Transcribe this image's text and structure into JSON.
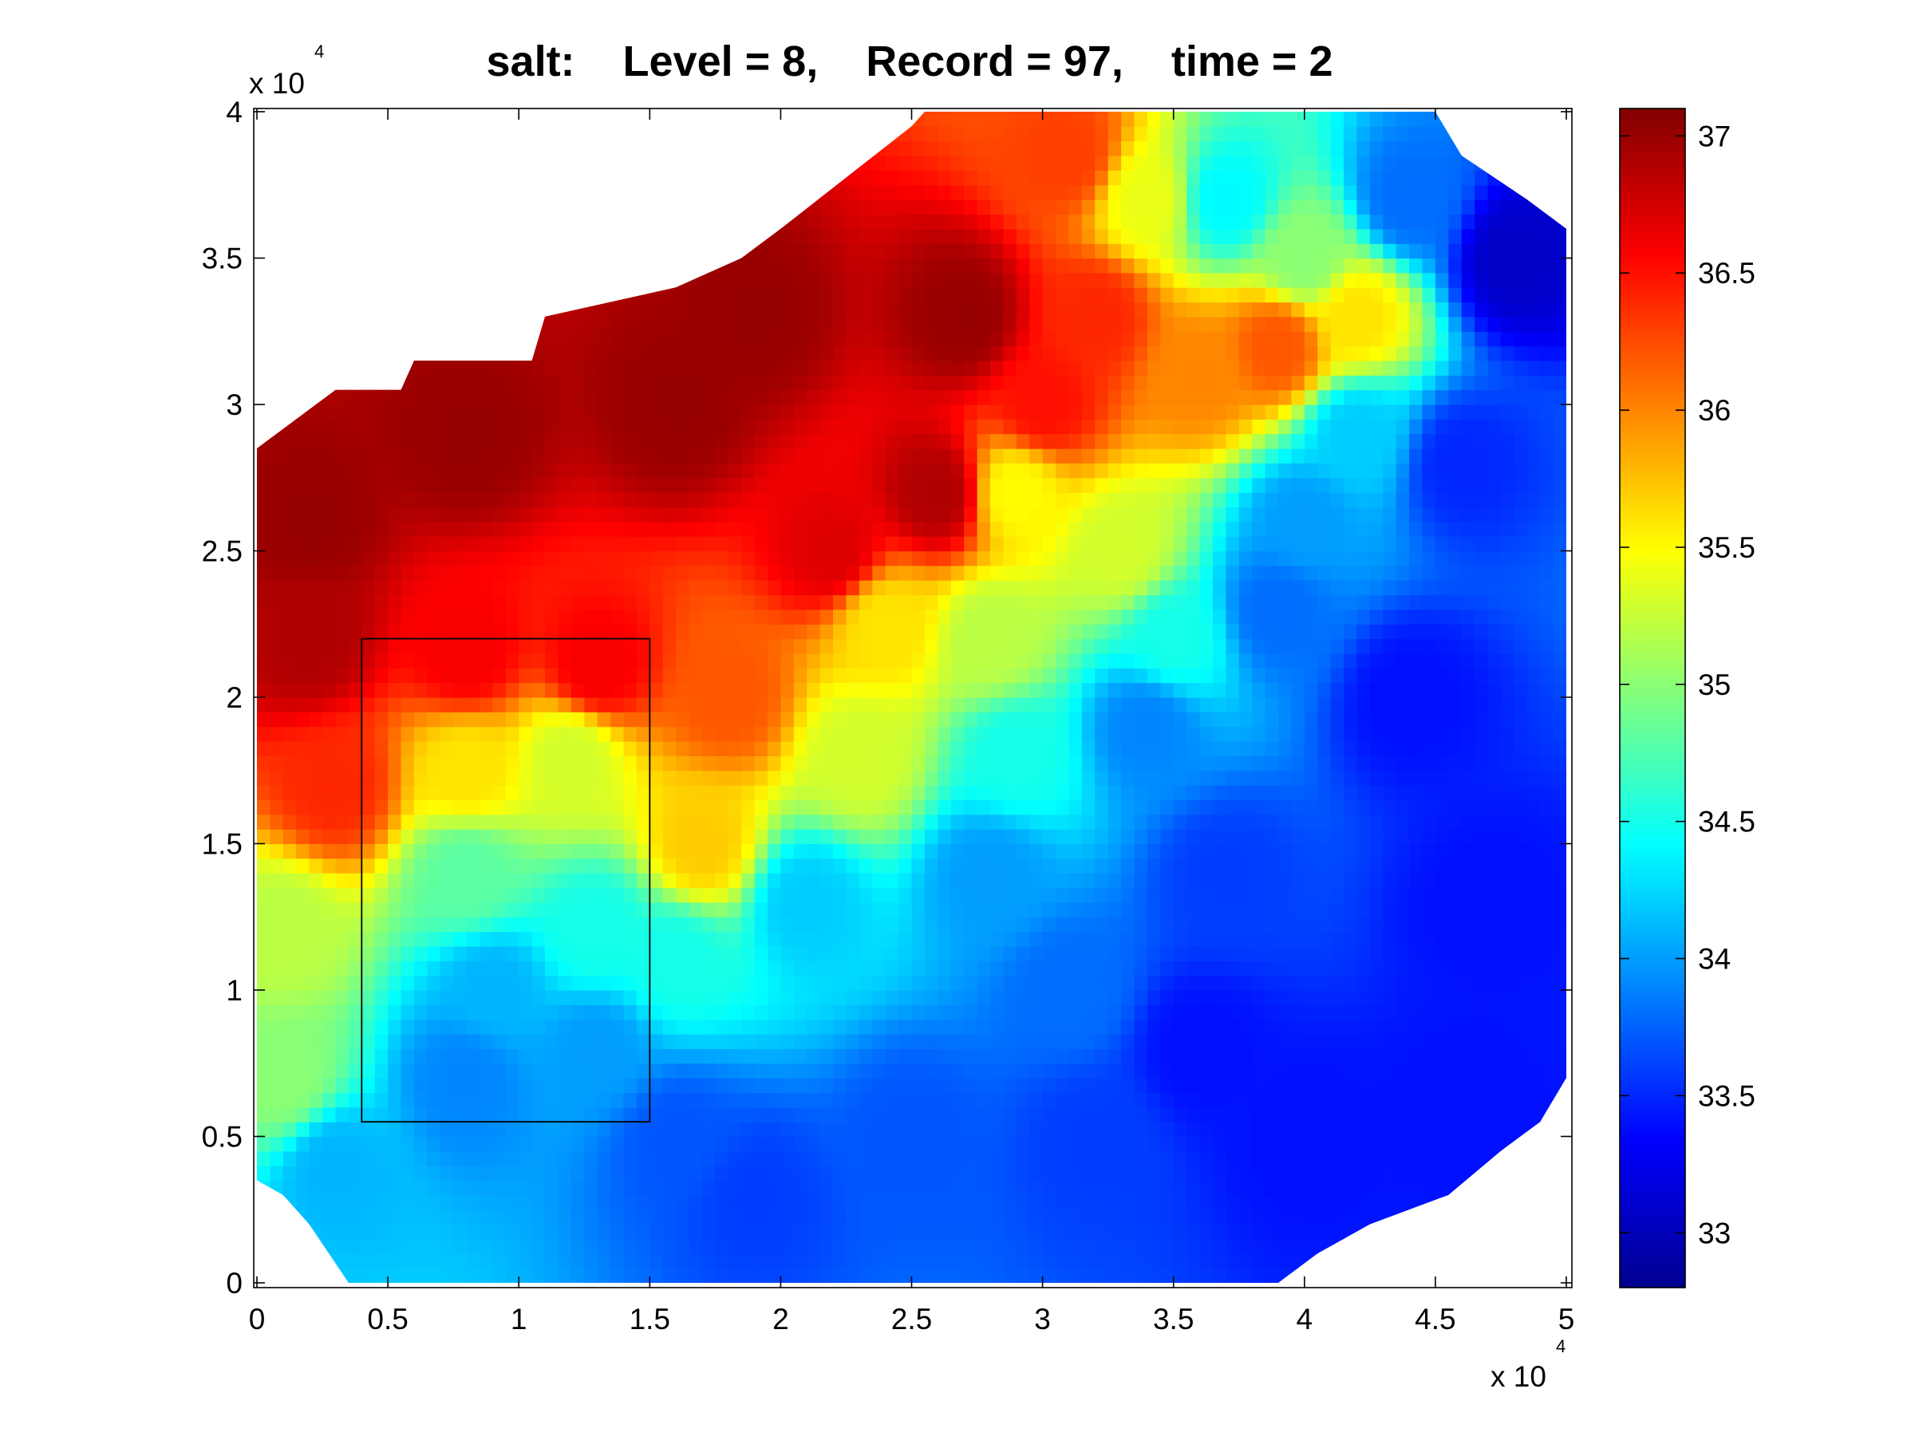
{
  "chart_data": {
    "type": "heatmap",
    "title": "salt:    Level = 8,    Record = 97,    time = 2",
    "xlabel": "",
    "ylabel": "",
    "x_multiplier": "x 10",
    "x_multiplier_exponent": "4",
    "y_multiplier": "x 10",
    "y_multiplier_exponent": "4",
    "xlim": [
      0,
      5
    ],
    "ylim": [
      0,
      4
    ],
    "x_ticks": [
      "0",
      "0.5",
      "1",
      "1.5",
      "2",
      "2.5",
      "3",
      "3.5",
      "4",
      "4.5",
      "5"
    ],
    "y_ticks": [
      "0",
      "0.5",
      "1",
      "1.5",
      "2",
      "2.5",
      "3",
      "3.5",
      "4"
    ],
    "colorbar": {
      "colormap": "jet",
      "range": [
        32.8,
        37.1
      ],
      "ticks": [
        "33",
        "33.5",
        "34",
        "34.5",
        "35",
        "35.5",
        "36",
        "36.5",
        "37"
      ]
    },
    "grid": false,
    "domain_outline": [
      [
        0,
        1.2
      ],
      [
        0,
        2.85
      ],
      [
        0.3,
        3.05
      ],
      [
        0.55,
        3.05
      ],
      [
        0.6,
        3.15
      ],
      [
        1.05,
        3.15
      ],
      [
        1.1,
        3.3
      ],
      [
        1.6,
        3.4
      ],
      [
        1.85,
        3.5
      ],
      [
        2.0,
        3.6
      ],
      [
        2.5,
        3.95
      ],
      [
        2.55,
        4.0
      ],
      [
        4.5,
        4.0
      ],
      [
        4.6,
        3.85
      ],
      [
        4.85,
        3.7
      ],
      [
        5.0,
        3.6
      ],
      [
        5.0,
        0.7
      ],
      [
        4.9,
        0.55
      ],
      [
        4.75,
        0.45
      ],
      [
        4.55,
        0.3
      ],
      [
        4.25,
        0.2
      ],
      [
        4.05,
        0.1
      ],
      [
        3.9,
        0.0
      ],
      [
        0.35,
        0.0
      ],
      [
        0.2,
        0.2
      ],
      [
        0.1,
        0.3
      ],
      [
        0,
        0.35
      ]
    ],
    "annotation_box": {
      "x": [
        0.4,
        1.5
      ],
      "y": [
        0.55,
        2.2
      ]
    },
    "salinity_field_anchors": [
      {
        "x": 0.2,
        "y": 2.6,
        "v": 37.0
      },
      {
        "x": 0.2,
        "y": 2.2,
        "v": 36.9
      },
      {
        "x": 0.3,
        "y": 1.7,
        "v": 36.4
      },
      {
        "x": 0.1,
        "y": 1.2,
        "v": 35.2
      },
      {
        "x": 0.1,
        "y": 0.7,
        "v": 35.0
      },
      {
        "x": 0.3,
        "y": 0.4,
        "v": 34.1
      },
      {
        "x": 0.8,
        "y": 2.9,
        "v": 37.0
      },
      {
        "x": 0.8,
        "y": 2.15,
        "v": 36.6
      },
      {
        "x": 0.8,
        "y": 1.75,
        "v": 35.6
      },
      {
        "x": 0.8,
        "y": 1.4,
        "v": 34.8
      },
      {
        "x": 0.9,
        "y": 1.0,
        "v": 34.1
      },
      {
        "x": 0.8,
        "y": 0.7,
        "v": 33.9
      },
      {
        "x": 1.3,
        "y": 2.1,
        "v": 36.6
      },
      {
        "x": 1.2,
        "y": 1.8,
        "v": 35.3
      },
      {
        "x": 1.3,
        "y": 1.2,
        "v": 34.5
      },
      {
        "x": 1.3,
        "y": 0.8,
        "v": 34.0
      },
      {
        "x": 1.8,
        "y": 2.0,
        "v": 36.2
      },
      {
        "x": 1.7,
        "y": 1.5,
        "v": 35.7
      },
      {
        "x": 1.6,
        "y": 1.1,
        "v": 34.5
      },
      {
        "x": 1.6,
        "y": 0.5,
        "v": 33.7
      },
      {
        "x": 1.9,
        "y": 0.3,
        "v": 33.6
      },
      {
        "x": 2.1,
        "y": 1.3,
        "v": 34.2
      },
      {
        "x": 2.5,
        "y": 0.5,
        "v": 33.7
      },
      {
        "x": 2.3,
        "y": 1.8,
        "v": 35.3
      },
      {
        "x": 2.4,
        "y": 2.25,
        "v": 35.6
      },
      {
        "x": 2.2,
        "y": 2.5,
        "v": 36.7
      },
      {
        "x": 2.6,
        "y": 2.7,
        "v": 36.9
      },
      {
        "x": 2.7,
        "y": 3.3,
        "v": 37.0
      },
      {
        "x": 1.6,
        "y": 3.0,
        "v": 37.0
      },
      {
        "x": 1.9,
        "y": 3.3,
        "v": 37.0
      },
      {
        "x": 2.9,
        "y": 2.7,
        "v": 35.5
      },
      {
        "x": 2.8,
        "y": 2.2,
        "v": 35.2
      },
      {
        "x": 2.9,
        "y": 1.8,
        "v": 34.5
      },
      {
        "x": 2.8,
        "y": 1.4,
        "v": 34.0
      },
      {
        "x": 3.1,
        "y": 1.0,
        "v": 33.8
      },
      {
        "x": 3.2,
        "y": 0.5,
        "v": 33.6
      },
      {
        "x": 3.0,
        "y": 3.0,
        "v": 36.5
      },
      {
        "x": 3.2,
        "y": 3.3,
        "v": 36.4
      },
      {
        "x": 3.6,
        "y": 3.1,
        "v": 36.0
      },
      {
        "x": 3.3,
        "y": 2.5,
        "v": 35.3
      },
      {
        "x": 3.5,
        "y": 2.2,
        "v": 34.5
      },
      {
        "x": 3.4,
        "y": 1.9,
        "v": 33.9
      },
      {
        "x": 3.7,
        "y": 1.4,
        "v": 33.6
      },
      {
        "x": 3.6,
        "y": 0.8,
        "v": 33.4
      },
      {
        "x": 4.0,
        "y": 0.5,
        "v": 33.4
      },
      {
        "x": 3.1,
        "y": 3.85,
        "v": 36.3
      },
      {
        "x": 3.4,
        "y": 3.7,
        "v": 35.4
      },
      {
        "x": 3.7,
        "y": 3.7,
        "v": 34.4
      },
      {
        "x": 4.0,
        "y": 3.5,
        "v": 35.0
      },
      {
        "x": 3.9,
        "y": 3.2,
        "v": 36.2
      },
      {
        "x": 4.2,
        "y": 3.3,
        "v": 35.6
      },
      {
        "x": 4.2,
        "y": 2.9,
        "v": 34.2
      },
      {
        "x": 4.0,
        "y": 2.6,
        "v": 34.0
      },
      {
        "x": 3.9,
        "y": 2.3,
        "v": 33.8
      },
      {
        "x": 4.4,
        "y": 3.7,
        "v": 33.8
      },
      {
        "x": 4.8,
        "y": 3.5,
        "v": 33.1
      },
      {
        "x": 4.6,
        "y": 2.8,
        "v": 33.5
      },
      {
        "x": 4.4,
        "y": 2.0,
        "v": 33.4
      },
      {
        "x": 4.7,
        "y": 1.3,
        "v": 33.4
      },
      {
        "x": 4.6,
        "y": 0.6,
        "v": 33.4
      }
    ]
  }
}
